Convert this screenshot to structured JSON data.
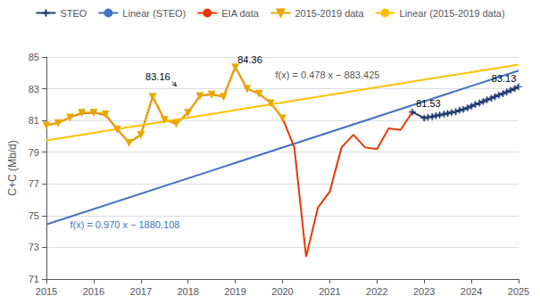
{
  "chart_data": {
    "type": "line",
    "ylabel": "C+C (Mb/d)",
    "xlim": [
      2015,
      2025
    ],
    "ylim": [
      71,
      85
    ],
    "xticks": [
      2015,
      2016,
      2017,
      2018,
      2019,
      2020,
      2021,
      2022,
      2023,
      2024,
      2025
    ],
    "yticks": [
      71,
      73,
      75,
      77,
      79,
      81,
      83,
      85
    ],
    "grid": "y",
    "legend": "top",
    "series": [
      {
        "name": "STEO",
        "color": "#1f3b6e",
        "marker": "plus",
        "x": [
          2022.75,
          2023.0,
          2023.08,
          2023.17,
          2023.25,
          2023.33,
          2023.42,
          2023.5,
          2023.58,
          2023.67,
          2023.75,
          2023.83,
          2023.92,
          2024.0,
          2024.08,
          2024.17,
          2024.25,
          2024.33,
          2024.42,
          2024.5,
          2024.58,
          2024.67,
          2024.75,
          2024.83,
          2024.92,
          2025.0
        ],
        "values": [
          81.53,
          81.15,
          81.2,
          81.25,
          81.3,
          81.35,
          81.4,
          81.45,
          81.5,
          81.55,
          81.65,
          81.7,
          81.8,
          81.9,
          82.0,
          82.1,
          82.2,
          82.3,
          82.4,
          82.5,
          82.6,
          82.7,
          82.8,
          82.9,
          83.02,
          83.13
        ],
        "errors": [
          0.1,
          0.1,
          0.1,
          0.1,
          0.1,
          0.1,
          0.1,
          0.1,
          0.1,
          0.1,
          0.1,
          0.1,
          0.1,
          0.1,
          0.1,
          0.1,
          0.1,
          0.1,
          0.1,
          0.1,
          0.1,
          0.1,
          0.1,
          0.1,
          0.1,
          0.1
        ]
      },
      {
        "name": "Linear (STEO)",
        "color": "#4472c4",
        "x": [
          2015,
          2025
        ],
        "values": [
          74.442,
          84.142
        ]
      },
      {
        "name": "EIA data",
        "color": "#e83800",
        "x": [
          2015.0,
          2015.25,
          2015.5,
          2015.75,
          2016.0,
          2016.25,
          2016.5,
          2016.75,
          2017.0,
          2017.25,
          2017.5,
          2017.75,
          2018.0,
          2018.25,
          2018.5,
          2018.75,
          2019.0,
          2019.25,
          2019.5,
          2019.75,
          2020.0,
          2020.25,
          2020.5,
          2020.75,
          2021.0,
          2021.25,
          2021.5,
          2021.75,
          2022.0,
          2022.25,
          2022.5,
          2022.75
        ],
        "values": [
          80.7,
          80.85,
          81.2,
          81.45,
          81.5,
          81.35,
          80.45,
          79.6,
          80.1,
          82.5,
          81.05,
          80.8,
          81.5,
          82.55,
          82.65,
          82.5,
          84.36,
          83.0,
          82.7,
          82.1,
          81.15,
          79.3,
          72.4,
          75.5,
          76.5,
          79.3,
          80.1,
          79.3,
          79.2,
          80.5,
          80.4,
          81.53
        ]
      },
      {
        "name": "2015-2019 data",
        "color": "#e8a800",
        "marker": "triangle_down",
        "x": [
          2015.0,
          2015.25,
          2015.5,
          2015.75,
          2016.0,
          2016.25,
          2016.5,
          2016.75,
          2017.0,
          2017.25,
          2017.5,
          2017.75,
          2018.0,
          2018.25,
          2018.5,
          2018.75,
          2019.0,
          2019.25,
          2019.5,
          2019.75,
          2020.0
        ],
        "values": [
          80.7,
          80.85,
          81.2,
          81.5,
          81.5,
          81.4,
          80.45,
          79.6,
          80.1,
          82.5,
          81.05,
          80.8,
          81.5,
          82.55,
          82.65,
          82.5,
          84.36,
          83.0,
          82.7,
          82.1,
          81.15
        ]
      },
      {
        "name": "Linear (2015-2019 data)",
        "color": "#ffc000",
        "x": [
          2015,
          2025
        ],
        "values": [
          79.745,
          84.525
        ]
      }
    ],
    "annotations": [
      {
        "text": "83.16",
        "x": 2017.1,
        "y": 83.45,
        "arrow_to": [
          2017.75,
          83.16
        ],
        "color": "#000000"
      },
      {
        "text": "84.36",
        "x": 2019.05,
        "y": 84.55,
        "color": "#000000"
      },
      {
        "text": "81.53",
        "x": 2022.83,
        "y": 81.75,
        "color": "#000000"
      },
      {
        "text": "83.13",
        "x": 2024.95,
        "y": 83.35,
        "color": "#000000"
      },
      {
        "text": "f(x) = 0.970 x − 1880.108",
        "x": 2015.5,
        "y": 74.1,
        "color": "#4472c4"
      },
      {
        "text": "f(x) = 0.478 x − 883.425",
        "x": 2019.85,
        "y": 83.55,
        "color": "#555555"
      }
    ]
  }
}
